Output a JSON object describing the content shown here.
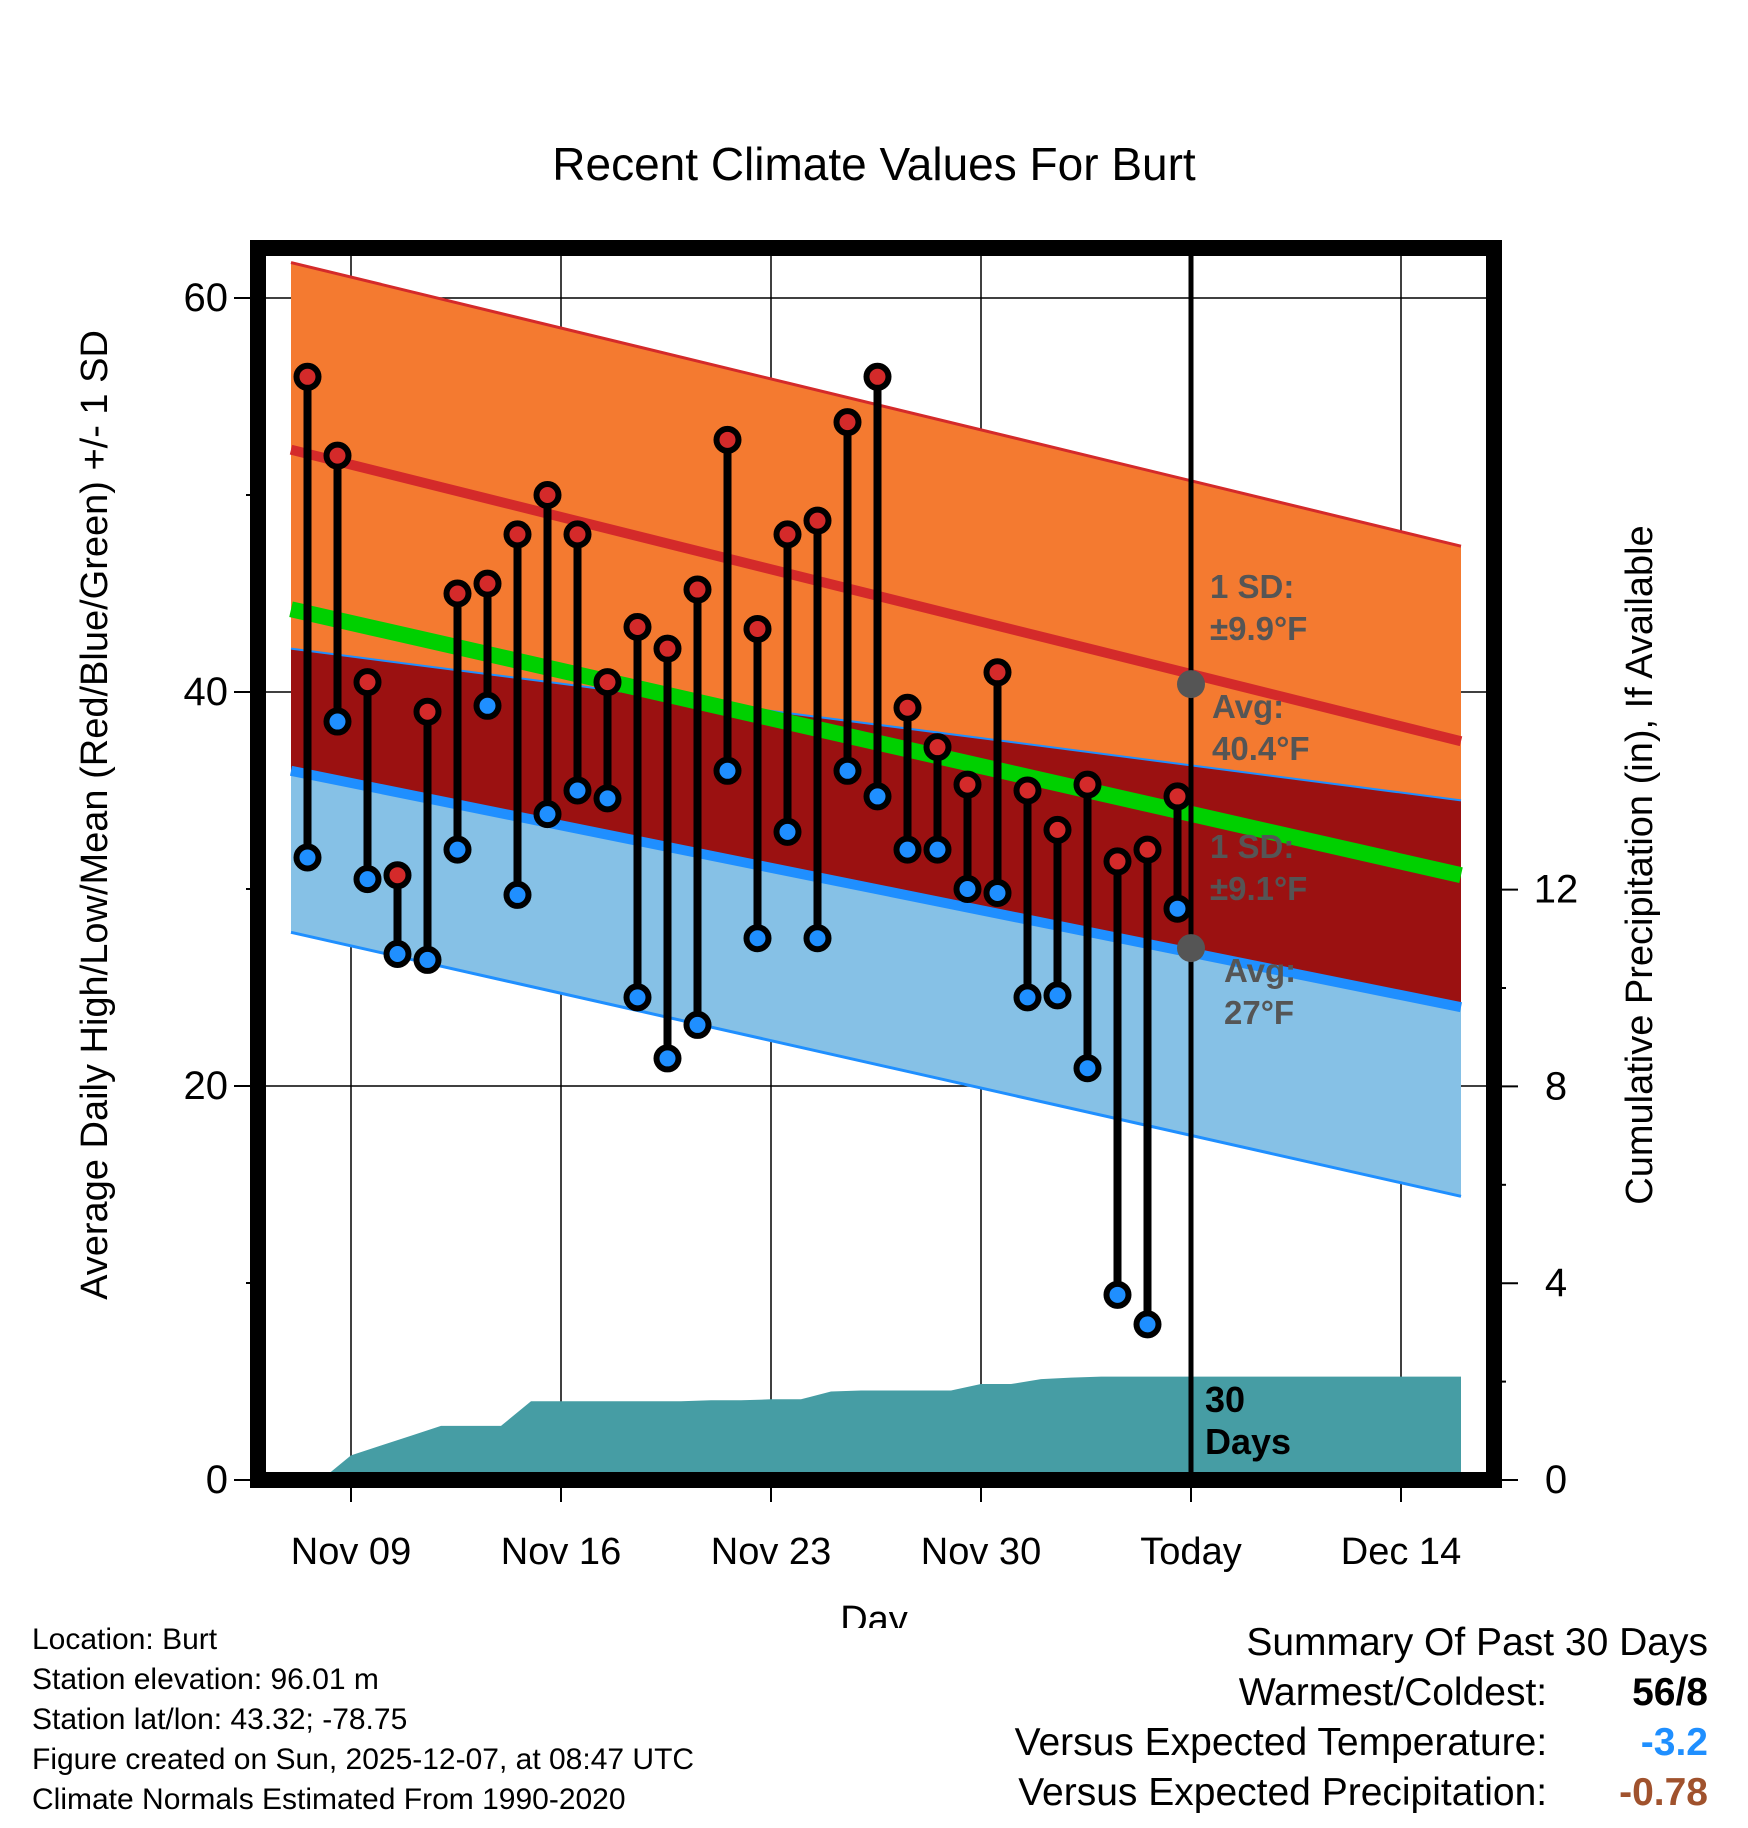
{
  "chart_data": {
    "type": "line",
    "title": "Recent Climate Values For Burt",
    "xlabel": "Day",
    "ylabel": "Average Daily High/Low/Mean (Red/Blue/Green) +/- 1 SD",
    "y2label": "Cumulative Precipitation (in), If Available",
    "ylim": [
      0,
      60
    ],
    "y_ticks": [
      0,
      20,
      40,
      60
    ],
    "y2lim": [
      0,
      12
    ],
    "y2_ticks": [
      0,
      4,
      8,
      12
    ],
    "x_range_days": [
      -30,
      9
    ],
    "x_ticks": [
      {
        "day": -28,
        "label": "Nov 09"
      },
      {
        "day": -21,
        "label": "Nov 16"
      },
      {
        "day": -14,
        "label": "Nov 23"
      },
      {
        "day": -7,
        "label": "Nov 30"
      },
      {
        "day": 0,
        "label": "Today"
      },
      {
        "day": 7,
        "label": "Dec 14"
      }
    ],
    "normals": {
      "high_upper": {
        "start": 61.8,
        "end": 47.4
      },
      "high_avg": {
        "start": 52.3,
        "end": 37.5
      },
      "mean_avg": {
        "start": 44.2,
        "end": 30.7
      },
      "low_avg": {
        "start": 36.0,
        "end": 24.0
      },
      "low_lower": {
        "start": 27.8,
        "end": 14.4
      },
      "mean_band_upper": {
        "start": 42.2,
        "end": 34.5
      },
      "mean_band_lower": {
        "start": 43.0,
        "end": 27.2
      }
    },
    "highs": [
      56,
      52,
      40.5,
      30.7,
      39,
      45,
      45.5,
      48,
      50,
      48,
      40.5,
      43.3,
      42.2,
      45.2,
      52.8,
      43.2,
      48,
      48.7,
      53.7,
      56,
      39.2,
      37.2,
      35.3,
      41,
      35,
      33,
      35.3,
      31.4,
      32,
      34.7
    ],
    "lows": [
      31.6,
      38.5,
      30.5,
      26.7,
      26.4,
      32,
      39.3,
      29.7,
      33.8,
      35,
      34.6,
      24.5,
      21.4,
      23.1,
      36,
      27.5,
      32.9,
      27.5,
      36,
      34.7,
      32,
      32,
      30,
      29.8,
      24.5,
      24.6,
      20.9,
      9.4,
      7.9,
      29
    ],
    "precip_cumulative": [
      {
        "day": -30,
        "value": 0
      },
      {
        "day": -29,
        "value": 0
      },
      {
        "day": -28,
        "value": 0.5
      },
      {
        "day": -27,
        "value": 0.7
      },
      {
        "day": -26,
        "value": 0.9
      },
      {
        "day": -25,
        "value": 1.1
      },
      {
        "day": -24,
        "value": 1.1
      },
      {
        "day": -23,
        "value": 1.1
      },
      {
        "day": -22,
        "value": 1.6
      },
      {
        "day": -21,
        "value": 1.6
      },
      {
        "day": -20,
        "value": 1.6
      },
      {
        "day": -19,
        "value": 1.6
      },
      {
        "day": -18,
        "value": 1.6
      },
      {
        "day": -17,
        "value": 1.6
      },
      {
        "day": -16,
        "value": 1.62
      },
      {
        "day": -15,
        "value": 1.62
      },
      {
        "day": -14,
        "value": 1.64
      },
      {
        "day": -13,
        "value": 1.64
      },
      {
        "day": -12,
        "value": 1.8
      },
      {
        "day": -11,
        "value": 1.82
      },
      {
        "day": -10,
        "value": 1.82
      },
      {
        "day": -9,
        "value": 1.82
      },
      {
        "day": -8,
        "value": 1.82
      },
      {
        "day": -7,
        "value": 1.95
      },
      {
        "day": -6,
        "value": 1.95
      },
      {
        "day": -5,
        "value": 2.05
      },
      {
        "day": -4,
        "value": 2.08
      },
      {
        "day": -3,
        "value": 2.1
      },
      {
        "day": -2,
        "value": 2.1
      },
      {
        "day": -1,
        "value": 2.1
      },
      {
        "day": 0,
        "value": 2.1
      },
      {
        "day": 9,
        "value": 2.1
      }
    ],
    "today_markers": {
      "high_avg": 40.4,
      "low_avg": 27
    },
    "annotations": {
      "high_sd_title": "1 SD:",
      "high_sd_value": "±9.9°F",
      "high_avg_title": "Avg:",
      "high_avg_value": "40.4°F",
      "low_sd_title": "1 SD:",
      "low_sd_value": "±9.1°F",
      "low_avg_title": "Avg:",
      "low_avg_value": "27°F",
      "period_line1": "30",
      "period_line2": "Days"
    },
    "colors": {
      "high_band": "#f47a30",
      "high_line": "#d42a2a",
      "mean_band": "#9b1111",
      "mean_line": "#00d000",
      "low_band": "#86c1e6",
      "low_line": "#1f8fff",
      "precip": "#469da4",
      "high_dot": "#d42a2a",
      "low_dot": "#1f8fff",
      "annotation": "#555555"
    }
  },
  "footer": {
    "location": "Location: Burt",
    "elevation": "Station elevation: 96.01 m",
    "latlon": "Station lat/lon: 43.32; -78.75",
    "created": "Figure created on Sun, 2025-12-07, at 08:47 UTC",
    "normals": "Climate Normals Estimated From 1990-2020"
  },
  "summary": {
    "heading": "Summary Of Past 30 Days",
    "warm_cold_label": "Warmest/Coldest:",
    "warm_cold_value": "56/8",
    "temp_label": "Versus Expected Temperature:",
    "temp_value": "-3.2",
    "temp_color": "#1f8fff",
    "precip_label": "Versus Expected Precipitation:",
    "precip_value": "-0.78",
    "precip_color": "#a0522d"
  }
}
